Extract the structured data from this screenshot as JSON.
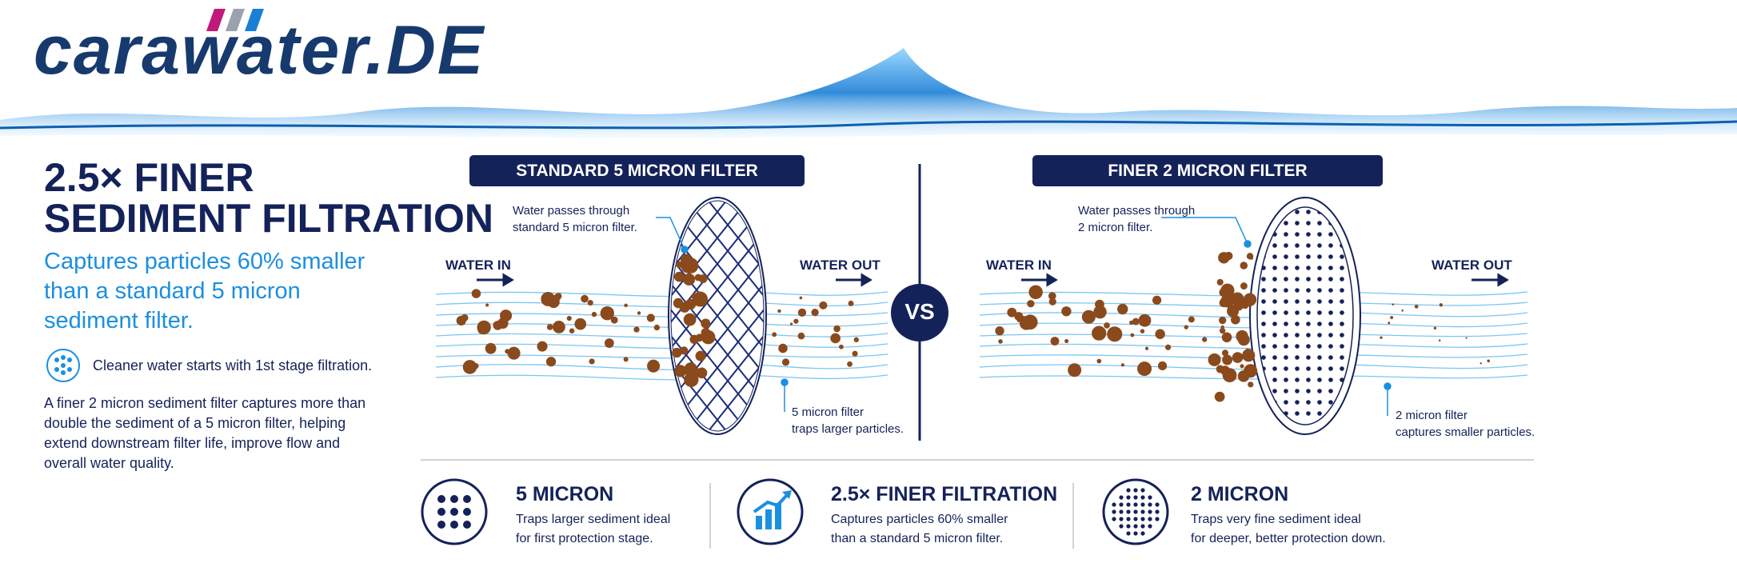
{
  "logo": "carawater.DE",
  "headline": [
    "2.5× FINER",
    "SEDIMENT FILTRATION"
  ],
  "subheadline": [
    "Captures particles 60% smaller",
    "than a standard 5 micron",
    "sediment filter."
  ],
  "feature": "Cleaner water starts with 1st stage filtration.",
  "body": [
    "A finer 2 micron sediment filter captures more than",
    "double the sediment of a 5 micron filter, helping",
    "extend downstream filter life, improve flow and",
    "overall water quality."
  ],
  "vs": "VS",
  "panels": [
    {
      "title": "STANDARD 5 MICRON FILTER",
      "water_in": "WATER IN",
      "water_out": "WATER OUT",
      "top_note": [
        "Water passes through",
        "standard 5 micron filter."
      ],
      "bottom_note": [
        "5 micron filter",
        "traps larger particles."
      ]
    },
    {
      "title": "FINER 2 MICRON FILTER",
      "water_in": "WATER IN",
      "water_out": "WATER OUT",
      "top_note": [
        "Water passes through",
        "2 micron filter."
      ],
      "bottom_note": [
        "2 micron filter",
        "captures smaller particles."
      ]
    }
  ],
  "summary": [
    {
      "title": "5 MICRON",
      "description": [
        "Traps larger sediment ideal",
        "for first protection stage."
      ]
    },
    {
      "title": "2.5× FINER FILTRATION",
      "description": [
        "Captures particles 60% smaller",
        "than a standard 5 micron filter."
      ]
    },
    {
      "title": "2 MICRON",
      "description": [
        "Traps very fine sediment ideal",
        "for deeper, better protection down."
      ]
    }
  ]
}
